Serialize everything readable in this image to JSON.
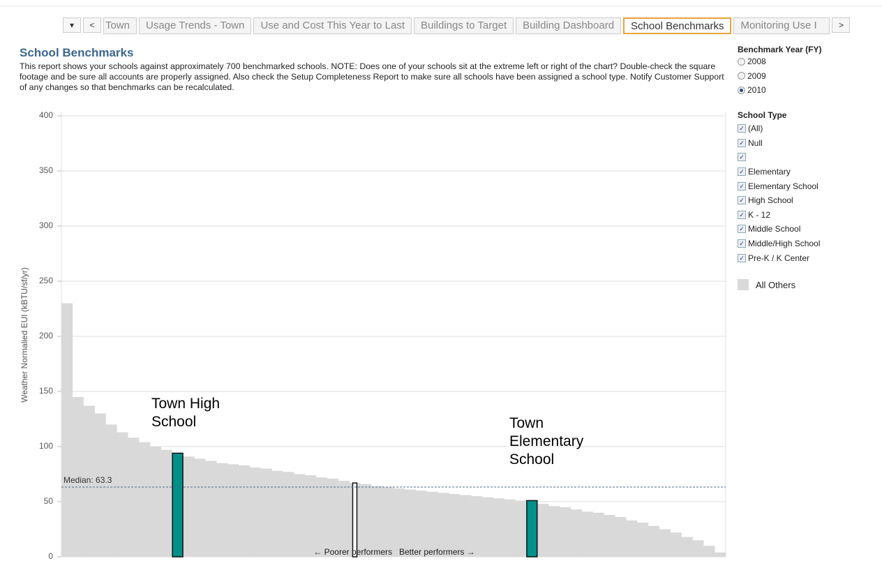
{
  "tabs": [
    "Town",
    "Usage Trends - Town",
    "Use and Cost This Year to Last",
    "Buildings to Target",
    "Building Dashboard",
    "School Benchmarks",
    "Monitoring Use I"
  ],
  "active_tab": 5,
  "header": {
    "title": "School Benchmarks",
    "description": "This report shows your schools against approximately 700 benchmarked schools. NOTE: Does one of your schools sit at the extreme left or right of the chart? Double-check the square footage and be sure all accounts are properly assigned. Also check the Setup Completeness Report to make sure all schools have been assigned a school type. Notify Customer Support of any changes so that benchmarks can be recalculated."
  },
  "filters": {
    "year_title": "Benchmark Year (FY)",
    "years": [
      "2008",
      "2009",
      "2010"
    ],
    "selected_year": 2,
    "type_title": "School Type",
    "types": [
      "(All)",
      "Null",
      "Elementary",
      "Elementary School",
      "High School",
      "K - 12",
      "Middle School",
      "Middle/High School",
      "Pre-K / K Center"
    ]
  },
  "chart_data": {
    "type": "bar",
    "y_label": "Weather Normalied EUI (kBTU/sf/yr)",
    "ylim": [
      0,
      400
    ],
    "yticks": [
      0,
      50,
      100,
      150,
      200,
      250,
      300,
      350,
      400
    ],
    "grid": true,
    "median": 63.3,
    "median_label": "Median: 63.3",
    "footnote": "← Poorer performers   Better performers →",
    "series": [
      {
        "name": "All Others",
        "color": "#d9d9d9",
        "values": [
          230,
          145,
          137,
          130,
          120,
          113,
          108,
          104,
          100,
          97,
          94,
          91,
          89,
          87,
          85,
          84,
          83,
          81,
          80,
          78,
          77,
          75,
          74,
          72,
          71,
          69,
          67,
          66,
          64,
          63,
          62,
          61,
          60,
          59,
          58,
          57,
          56,
          55,
          54,
          53,
          52,
          51,
          50,
          48,
          46,
          45,
          43,
          41,
          40,
          38,
          36,
          33,
          31,
          28,
          25,
          22,
          18,
          15,
          10,
          4
        ]
      },
      {
        "name": "Town High School",
        "color": "#00908a",
        "values": [
          null,
          null,
          null,
          null,
          null,
          null,
          null,
          null,
          null,
          null,
          94,
          null,
          null,
          null,
          null,
          null,
          null,
          null,
          null,
          null,
          null,
          null,
          null,
          null,
          null,
          null,
          null,
          null,
          null,
          null,
          null,
          null,
          null,
          null,
          null,
          null,
          null,
          null,
          null,
          null,
          null,
          null,
          null,
          null,
          null,
          null,
          null,
          null,
          null,
          null,
          null,
          null,
          null,
          null,
          null,
          null,
          null,
          null,
          null,
          null
        ]
      },
      {
        "name": "Town Elementary School",
        "color": "#00908a",
        "values": [
          null,
          null,
          null,
          null,
          null,
          null,
          null,
          null,
          null,
          null,
          null,
          null,
          null,
          null,
          null,
          null,
          null,
          null,
          null,
          null,
          null,
          null,
          null,
          null,
          null,
          null,
          null,
          null,
          null,
          null,
          null,
          null,
          null,
          null,
          null,
          null,
          null,
          null,
          null,
          null,
          null,
          null,
          51,
          null,
          null,
          null,
          null,
          null,
          null,
          null,
          null,
          null,
          null,
          null,
          null,
          null,
          null,
          null,
          null,
          null
        ]
      },
      {
        "color": "#ffffff",
        "values": [
          null,
          null,
          null,
          null,
          null,
          null,
          null,
          null,
          null,
          null,
          null,
          null,
          null,
          null,
          null,
          null,
          null,
          null,
          null,
          null,
          null,
          null,
          null,
          null,
          null,
          null,
          67,
          null,
          null,
          null,
          null,
          null,
          null,
          null,
          null,
          null,
          null,
          null,
          null,
          null,
          null,
          null,
          null,
          null,
          null,
          null,
          null,
          null,
          null,
          null,
          null,
          null,
          null,
          null,
          null,
          null,
          null,
          null,
          null,
          null
        ]
      }
    ]
  }
}
